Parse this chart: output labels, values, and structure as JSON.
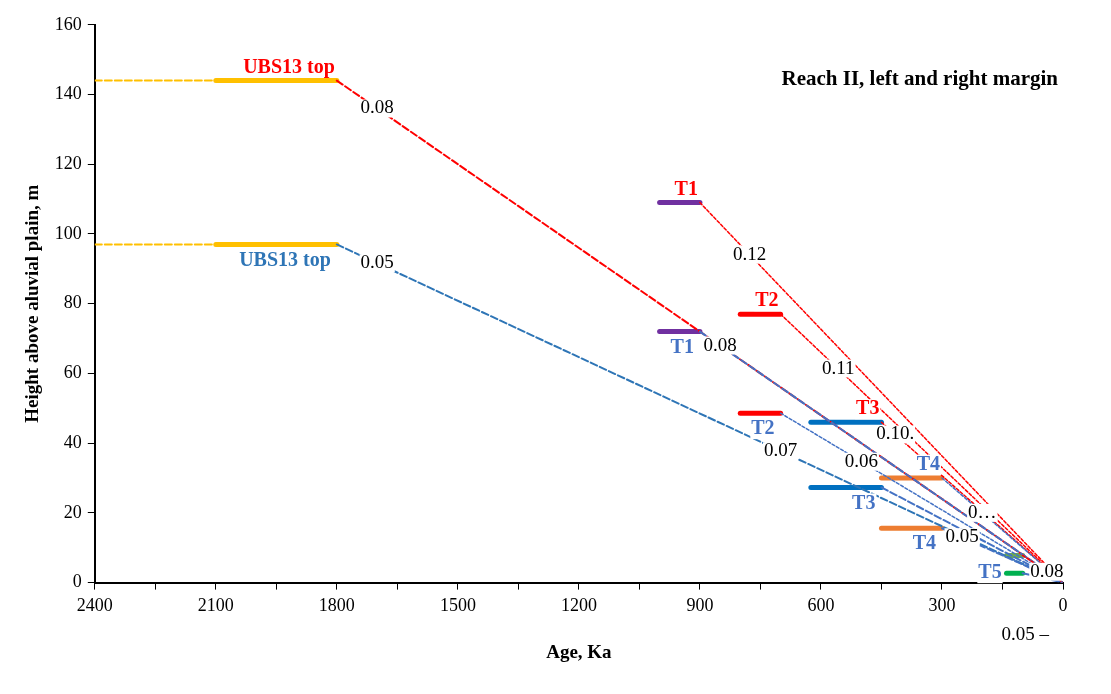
{
  "chart_data": {
    "type": "line",
    "title": "Reach II, left and right margin",
    "xlabel": "Age, Ka",
    "ylabel": "Height above aluvial plain, m",
    "xlim": [
      2400,
      0
    ],
    "xticks": [
      0,
      {
        "value": 150,
        "label": null
      },
      300,
      {
        "value": 450,
        "label": null
      },
      600,
      {
        "value": 750,
        "label": null
      },
      900,
      {
        "value": 1050,
        "label": null
      },
      1200,
      {
        "value": 1350,
        "label": null
      },
      1500,
      {
        "value": 1650,
        "label": null
      },
      1800,
      {
        "value": 1950,
        "label": null
      },
      2100,
      {
        "value": 2250,
        "label": null
      },
      2400
    ],
    "ylim": [
      0,
      160
    ],
    "yticks": [
      0,
      20,
      40,
      60,
      80,
      100,
      120,
      140,
      160
    ],
    "grid": false,
    "marker": "none",
    "series": [
      {
        "color": "#ffc000",
        "line_style": "dashed",
        "x": [
          2400,
          2100
        ],
        "values": [
          144,
          144
        ]
      },
      {
        "color": "#ffc000",
        "line_style": "solid",
        "x": [
          2100,
          1800
        ],
        "values": [
          144,
          144
        ]
      },
      {
        "color": "#ffc000",
        "line_style": "dashed",
        "x": [
          2400,
          2100
        ],
        "values": [
          97,
          97
        ]
      },
      {
        "color": "#ffc000",
        "line_style": "solid",
        "x": [
          2100,
          1800
        ],
        "values": [
          97,
          97
        ]
      },
      {
        "color": "#7030a0",
        "line_style": "solid",
        "x": [
          1000,
          900
        ],
        "values": [
          109,
          109
        ]
      },
      {
        "color": "#7030a0",
        "line_style": "solid",
        "x": [
          1000,
          900
        ],
        "values": [
          72,
          72
        ]
      },
      {
        "color": "#ff0000",
        "line_style": "solid",
        "x": [
          800,
          700
        ],
        "values": [
          77,
          77
        ]
      },
      {
        "color": "#ff0000",
        "line_style": "solid",
        "x": [
          800,
          700
        ],
        "values": [
          48.6,
          48.6
        ]
      },
      {
        "color": "#0070c0",
        "line_style": "solid",
        "x": [
          625,
          450
        ],
        "values": [
          46,
          46
        ]
      },
      {
        "color": "#0070c0",
        "line_style": "solid",
        "x": [
          625,
          450
        ],
        "values": [
          27.3,
          27.3
        ]
      },
      {
        "color": "#ed7d31",
        "line_style": "solid",
        "x": [
          450,
          300
        ],
        "values": [
          30,
          30
        ]
      },
      {
        "color": "#ed7d31",
        "line_style": "solid",
        "x": [
          450,
          300
        ],
        "values": [
          15.6,
          15.6
        ]
      },
      {
        "color": "#70ad47",
        "line_style": "solid",
        "x": [
          140,
          100
        ],
        "values": [
          7.8,
          7.8
        ]
      },
      {
        "color": "#00b050",
        "line_style": "solid",
        "x": [
          140,
          100
        ],
        "values": [
          2.7,
          2.7
        ]
      },
      {
        "name": "UBS13 top",
        "color": "#ff0000",
        "line_style": "dashed",
        "x": [
          1800,
          0
        ],
        "values": [
          144,
          0
        ]
      },
      {
        "name": "UBS13 top",
        "color": "#2e75b6",
        "line_style": "dashed",
        "x": [
          1800,
          0
        ],
        "values": [
          97,
          0
        ]
      },
      {
        "name": "T1",
        "color": "#ff0000",
        "line_style": "dotted",
        "x": [
          900,
          0
        ],
        "values": [
          109,
          0
        ]
      },
      {
        "name": "T1",
        "color": "#4472c4",
        "line_style": "dashed",
        "x": [
          900,
          0
        ],
        "values": [
          72,
          0
        ]
      },
      {
        "name": "T2",
        "color": "#ff0000",
        "line_style": "dotted",
        "x": [
          700,
          0
        ],
        "values": [
          77,
          0
        ]
      },
      {
        "name": "T2",
        "color": "#4472c4",
        "line_style": "dotted",
        "x": [
          700,
          0
        ],
        "values": [
          48.6,
          0
        ]
      },
      {
        "name": "T3",
        "color": "#ff0000",
        "line_style": "dotted",
        "x": [
          450,
          0
        ],
        "values": [
          46,
          0
        ]
      },
      {
        "name": "T3",
        "color": "#4472c4",
        "line_style": "dashed",
        "x": [
          450,
          0
        ],
        "values": [
          27.3,
          0
        ]
      },
      {
        "name": "T4",
        "color": "#4472c4",
        "line_style": "dotted",
        "x": [
          300,
          0
        ],
        "values": [
          30,
          0
        ]
      },
      {
        "name": "T4",
        "color": "#4472c4",
        "line_style": "dashed",
        "x": [
          300,
          0
        ],
        "values": [
          15.6,
          0
        ]
      },
      {
        "color": "#ff0000",
        "line_style": "dotted",
        "x": [
          100,
          0
        ],
        "values": [
          7.8,
          0
        ]
      },
      {
        "name": "T5",
        "color": "#4472c4",
        "line_style": "dashed",
        "x": [
          100,
          0
        ],
        "values": [
          2.7,
          0
        ]
      }
    ],
    "annotations": [
      {
        "text": "0.08",
        "x": 1700,
        "y": 136
      },
      {
        "text": "0.05",
        "x": 1700,
        "y": 91.6
      },
      {
        "text": "0.12",
        "x": 777,
        "y": 94.1
      },
      {
        "text": "0.08",
        "x": 850,
        "y": 68
      },
      {
        "text": "0.11",
        "x": 557,
        "y": 61.4
      },
      {
        "text": "0.07",
        "x": 700,
        "y": 37.7
      },
      {
        "text": "0.10.",
        "x": 416,
        "y": 42.5
      },
      {
        "text": "0.06",
        "x": 500,
        "y": 34.7
      },
      {
        "text": "0…",
        "x": 200,
        "y": 20
      },
      {
        "text": "0.05",
        "x": 250,
        "y": 13
      },
      {
        "text": "0.08",
        "x": 40,
        "y": 3.1
      },
      "0.05 –"
    ]
  }
}
